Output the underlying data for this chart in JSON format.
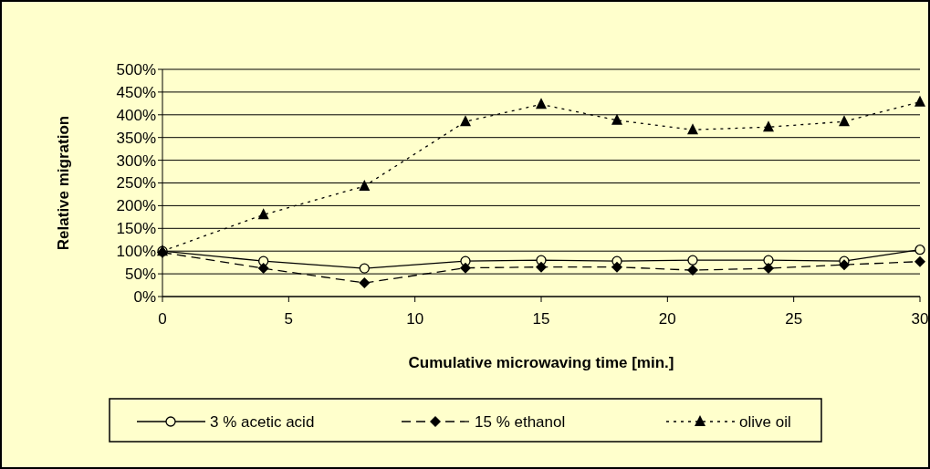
{
  "chart_data": {
    "type": "line",
    "xlabel": "Cumulative microwaving time [min.]",
    "ylabel": "Relative migration",
    "x": [
      0,
      4,
      8,
      12,
      15,
      18,
      21,
      24,
      27,
      30
    ],
    "xlim": [
      0,
      30
    ],
    "xticks": [
      0,
      5,
      10,
      15,
      20,
      25,
      30
    ],
    "ylim": [
      0,
      500
    ],
    "yticks": [
      {
        "value": 0,
        "label": "0%"
      },
      {
        "value": 50,
        "label": "50%"
      },
      {
        "value": 100,
        "label": "100%"
      },
      {
        "value": 150,
        "label": "150%"
      },
      {
        "value": 200,
        "label": "200%"
      },
      {
        "value": 250,
        "label": "250%"
      },
      {
        "value": 300,
        "label": "300%"
      },
      {
        "value": 350,
        "label": "350%"
      },
      {
        "value": 400,
        "label": "400%"
      },
      {
        "value": 450,
        "label": "450%"
      },
      {
        "value": 500,
        "label": "500%"
      }
    ],
    "grid": "y",
    "legend": "bottom",
    "series": [
      {
        "name": "3 % acetic acid",
        "color": "#000000",
        "marker": "circle",
        "line_style": "solid",
        "values": [
          100,
          78,
          62,
          78,
          80,
          78,
          80,
          80,
          78,
          103
        ]
      },
      {
        "name": "15 % ethanol",
        "color": "#000000",
        "marker": "diamond",
        "line_style": "dashed",
        "values": [
          97,
          62,
          30,
          63,
          65,
          65,
          58,
          62,
          70,
          77
        ]
      },
      {
        "name": "olive oil",
        "color": "#000000",
        "marker": "triangle",
        "line_style": "dotted",
        "values": [
          100,
          180,
          243,
          385,
          423,
          388,
          367,
          373,
          385,
          428
        ]
      }
    ]
  }
}
